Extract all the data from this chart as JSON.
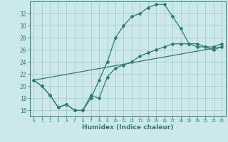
{
  "xlabel": "Humidex (Indice chaleur)",
  "bg_color": "#cce8ec",
  "grid_color": "#aacccc",
  "line_color": "#2d7d6e",
  "xlim": [
    -0.5,
    23.5
  ],
  "ylim": [
    15.0,
    34.0
  ],
  "xticks": [
    0,
    1,
    2,
    3,
    4,
    5,
    6,
    7,
    8,
    9,
    10,
    11,
    12,
    13,
    14,
    15,
    16,
    17,
    18,
    19,
    20,
    21,
    22,
    23
  ],
  "yticks": [
    16,
    18,
    20,
    22,
    24,
    26,
    28,
    30,
    32
  ],
  "line1_x": [
    0,
    1,
    2,
    3,
    4,
    5,
    6,
    7,
    8,
    9,
    10,
    11,
    12,
    13,
    14,
    15,
    16,
    17,
    18,
    19,
    20,
    21,
    22,
    23
  ],
  "line1_y": [
    21.0,
    20.0,
    18.5,
    16.5,
    17.0,
    16.0,
    16.0,
    18.0,
    21.0,
    24.0,
    28.0,
    30.0,
    31.5,
    32.0,
    33.0,
    33.5,
    33.5,
    31.5,
    29.5,
    27.0,
    26.5,
    26.5,
    26.0,
    26.5
  ],
  "line2_x": [
    0,
    1,
    2,
    3,
    4,
    5,
    6,
    7,
    8,
    9,
    10,
    11,
    12,
    13,
    14,
    15,
    16,
    17,
    18,
    19,
    20,
    21,
    22,
    23
  ],
  "line2_y": [
    21.0,
    20.0,
    18.5,
    16.5,
    17.0,
    16.0,
    16.0,
    18.5,
    18.0,
    21.5,
    23.0,
    23.5,
    24.0,
    25.0,
    25.5,
    26.0,
    26.5,
    27.0,
    27.0,
    27.0,
    27.0,
    26.5,
    26.5,
    27.0
  ],
  "line3_x": [
    0,
    23
  ],
  "line3_y": [
    21.0,
    26.5
  ]
}
